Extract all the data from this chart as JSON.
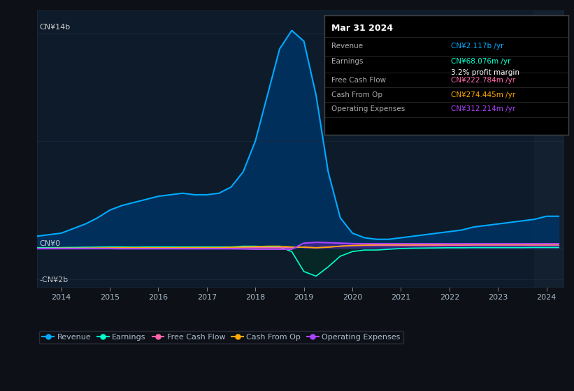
{
  "bg_color": "#0d1117",
  "plot_bg_color": "#0d1b2a",
  "title_box": {
    "date": "Mar 31 2024",
    "revenue": "CN¥2.117b /yr",
    "earnings": "CN¥68.076m /yr",
    "profit_margin": "3.2% profit margin",
    "free_cash_flow": "CN¥222.784m /yr",
    "cash_from_op": "CN¥274.445m /yr",
    "operating_expenses": "CN¥312.214m /yr"
  },
  "ylabel_top": "CN¥14b",
  "ylabel_zero": "CN¥0",
  "ylabel_neg": "-CN¥2b",
  "x_years": [
    2013.5,
    2014,
    2014.25,
    2014.5,
    2014.75,
    2015,
    2015.25,
    2015.5,
    2015.75,
    2016,
    2016.25,
    2016.5,
    2016.75,
    2017,
    2017.25,
    2017.5,
    2017.75,
    2018,
    2018.25,
    2018.5,
    2018.75,
    2019,
    2019.25,
    2019.5,
    2019.75,
    2020,
    2020.25,
    2020.5,
    2020.75,
    2021,
    2021.25,
    2021.5,
    2021.75,
    2022,
    2022.25,
    2022.5,
    2022.75,
    2023,
    2023.25,
    2023.5,
    2023.75,
    2024.0,
    2024.25
  ],
  "revenue": [
    0.8,
    1.0,
    1.3,
    1.6,
    2.0,
    2.5,
    2.8,
    3.0,
    3.2,
    3.4,
    3.5,
    3.6,
    3.5,
    3.5,
    3.6,
    4.0,
    5.0,
    7.0,
    10.0,
    13.0,
    14.2,
    13.5,
    10.0,
    5.0,
    2.0,
    1.0,
    0.7,
    0.6,
    0.6,
    0.7,
    0.8,
    0.9,
    1.0,
    1.1,
    1.2,
    1.4,
    1.5,
    1.6,
    1.7,
    1.8,
    1.9,
    2.1,
    2.1
  ],
  "earnings": [
    0.05,
    0.06,
    0.07,
    0.08,
    0.09,
    0.1,
    0.1,
    0.09,
    0.1,
    0.1,
    0.1,
    0.1,
    0.1,
    0.1,
    0.1,
    0.1,
    0.15,
    0.15,
    0.1,
    0.1,
    -0.2,
    -1.5,
    -1.8,
    -1.2,
    -0.5,
    -0.2,
    -0.1,
    -0.1,
    -0.05,
    0.0,
    0.02,
    0.03,
    0.04,
    0.05,
    0.05,
    0.06,
    0.06,
    0.06,
    0.06,
    0.06,
    0.07,
    0.068,
    0.068
  ],
  "free_cash_flow": [
    0.0,
    0.01,
    0.01,
    0.02,
    0.02,
    0.03,
    0.03,
    0.02,
    0.02,
    0.02,
    0.02,
    0.02,
    0.02,
    0.02,
    0.03,
    0.03,
    0.05,
    0.05,
    0.05,
    0.05,
    0.05,
    0.1,
    0.05,
    0.1,
    0.15,
    0.18,
    0.2,
    0.2,
    0.2,
    0.2,
    0.2,
    0.2,
    0.2,
    0.21,
    0.21,
    0.22,
    0.22,
    0.22,
    0.22,
    0.22,
    0.22,
    0.22,
    0.22
  ],
  "cash_from_op": [
    0.01,
    0.02,
    0.02,
    0.02,
    0.03,
    0.04,
    0.05,
    0.05,
    0.05,
    0.05,
    0.05,
    0.06,
    0.06,
    0.06,
    0.06,
    0.08,
    0.1,
    0.12,
    0.15,
    0.15,
    0.1,
    0.08,
    0.05,
    0.08,
    0.15,
    0.2,
    0.22,
    0.25,
    0.25,
    0.25,
    0.25,
    0.26,
    0.26,
    0.27,
    0.27,
    0.27,
    0.27,
    0.27,
    0.27,
    0.27,
    0.27,
    0.274,
    0.274
  ],
  "operating_expenses": [
    -0.01,
    -0.01,
    -0.01,
    -0.01,
    -0.01,
    -0.01,
    -0.02,
    -0.02,
    -0.02,
    -0.02,
    -0.02,
    -0.02,
    -0.02,
    -0.02,
    -0.02,
    -0.02,
    -0.03,
    -0.05,
    -0.05,
    -0.05,
    -0.05,
    0.35,
    0.4,
    0.38,
    0.35,
    0.32,
    0.31,
    0.31,
    0.31,
    0.31,
    0.31,
    0.31,
    0.31,
    0.31,
    0.31,
    0.31,
    0.31,
    0.31,
    0.31,
    0.31,
    0.31,
    0.312,
    0.312
  ],
  "colors": {
    "revenue": "#00aaff",
    "revenue_fill": "#003366",
    "earnings": "#00ffcc",
    "free_cash_flow": "#ff66aa",
    "cash_from_op": "#ffaa00",
    "operating_expenses": "#aa44ff"
  },
  "shaded_right_bg": "#1a2535",
  "grid_color": "#1e2d3d",
  "text_color": "#aabbcc",
  "axis_label_color": "#cccccc"
}
